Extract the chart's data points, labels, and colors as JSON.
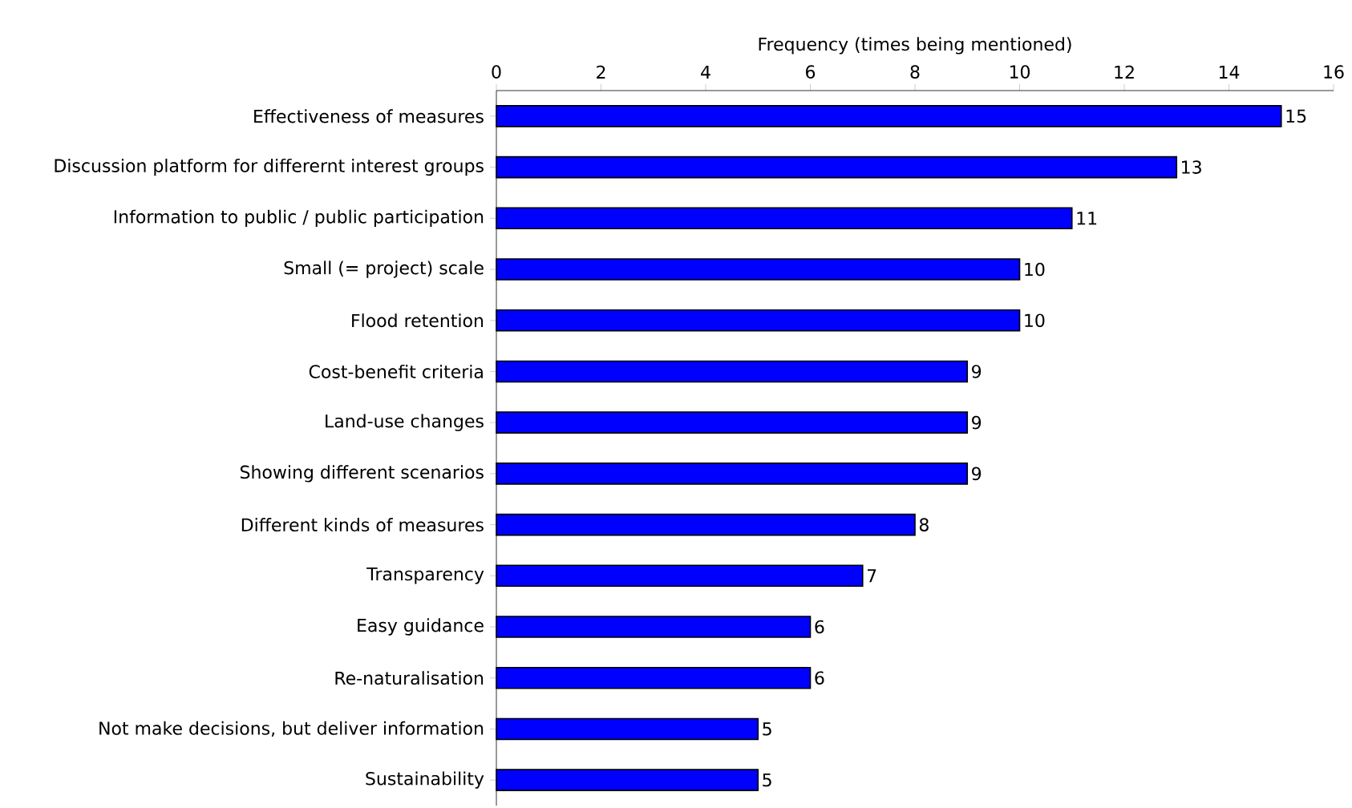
{
  "chart_data": {
    "type": "bar",
    "orientation": "horizontal",
    "xlabel": "Frequency (times being mentioned)",
    "categories": [
      "Effectiveness of measures",
      "Discussion platform for differernt interest groups",
      "Information to public / public participation",
      "Small (= project) scale",
      "Flood retention",
      "Cost-benefit criteria",
      "Land-use changes",
      "Showing different scenarios",
      "Different kinds of measures",
      "Transparency",
      "Easy guidance",
      "Re-naturalisation",
      "Not make decisions, but deliver information",
      "Sustainability"
    ],
    "values": [
      15,
      13,
      11,
      10,
      10,
      9,
      9,
      9,
      8,
      7,
      6,
      6,
      5,
      5
    ],
    "color": "#0000ff",
    "data_labels": true,
    "xlim": [
      0,
      16
    ],
    "xticks": [
      0,
      2,
      4,
      6,
      8,
      10,
      12,
      14,
      16
    ]
  }
}
